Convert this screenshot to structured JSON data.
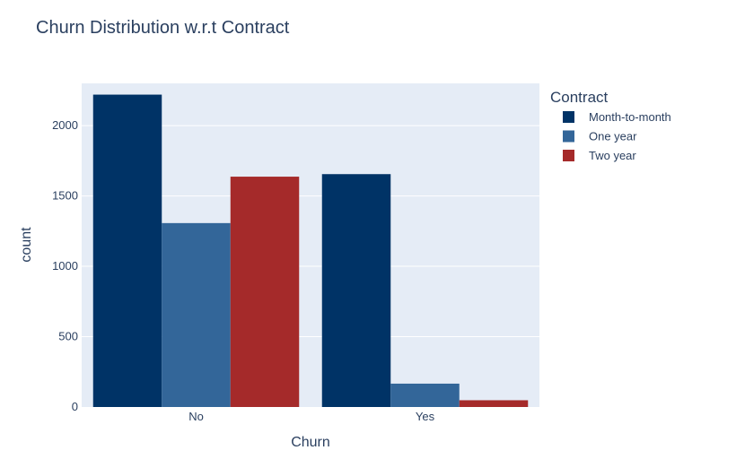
{
  "chart_data": {
    "type": "bar",
    "title": "Churn Distribution w.r.t Contract",
    "xlabel": "Churn",
    "ylabel": "count",
    "categories": [
      "No",
      "Yes"
    ],
    "ylim": [
      0,
      2300
    ],
    "yticks": [
      0,
      500,
      1000,
      1500,
      2000
    ],
    "grid": true,
    "legend_title": "Contract",
    "legend_position": "top-right",
    "series": [
      {
        "name": "Month-to-month",
        "color": "#003366",
        "values": [
          2220,
          1655
        ]
      },
      {
        "name": "One year",
        "color": "#336699",
        "values": [
          1307,
          166
        ]
      },
      {
        "name": "Two year",
        "color": "#a52a2a",
        "values": [
          1637,
          48
        ]
      }
    ],
    "plot_background": "#e5ecf6"
  }
}
